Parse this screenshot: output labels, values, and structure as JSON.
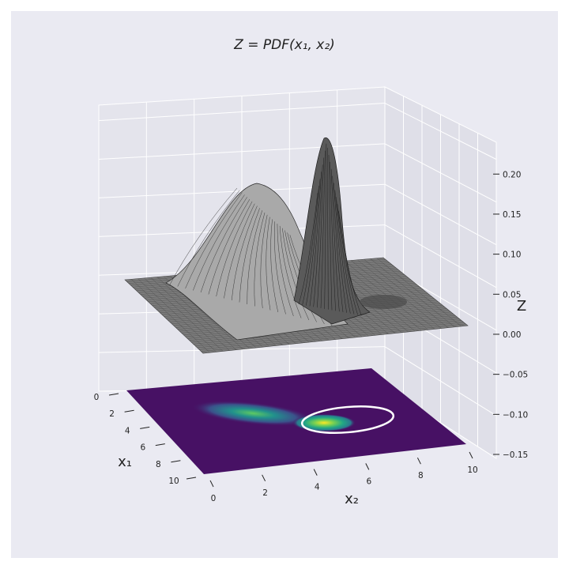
{
  "chart_data": {
    "type": "surface3d",
    "title": "Z = PDF(x₁, x₂)",
    "xlabel": "x₁",
    "ylabel": "x₂",
    "zlabel": "Z",
    "xlim": [
      0,
      10
    ],
    "ylim": [
      0,
      10
    ],
    "zlim": [
      -0.15,
      0.22
    ],
    "x_ticks": [
      "0",
      "2",
      "4",
      "6",
      "8",
      "10"
    ],
    "y_ticks": [
      "0",
      "2",
      "4",
      "6",
      "8",
      "10"
    ],
    "z_ticks": [
      "−0.15",
      "−0.10",
      "−0.05",
      "0.00",
      "0.05",
      "0.10",
      "0.15",
      "0.20"
    ],
    "z_tick_values": [
      -0.15,
      -0.1,
      -0.05,
      0.0,
      0.05,
      0.1,
      0.15,
      0.2
    ],
    "components": [
      {
        "name": "",
        "mean": [
          3.5,
          2.5
        ],
        "peak_z": 0.12
      },
      {
        "name": "",
        "mean": [
          7.0,
          5.0
        ],
        "peak_z": 0.21
      }
    ],
    "contour_offset_z": -0.15,
    "contour_colormap": "viridis",
    "ellipse": {
      "center": [
        7.0,
        5.0
      ],
      "color": "#ffffff"
    },
    "surface_color": "#8a8a8a",
    "background_color": "#eaeaf2",
    "grid": true
  }
}
